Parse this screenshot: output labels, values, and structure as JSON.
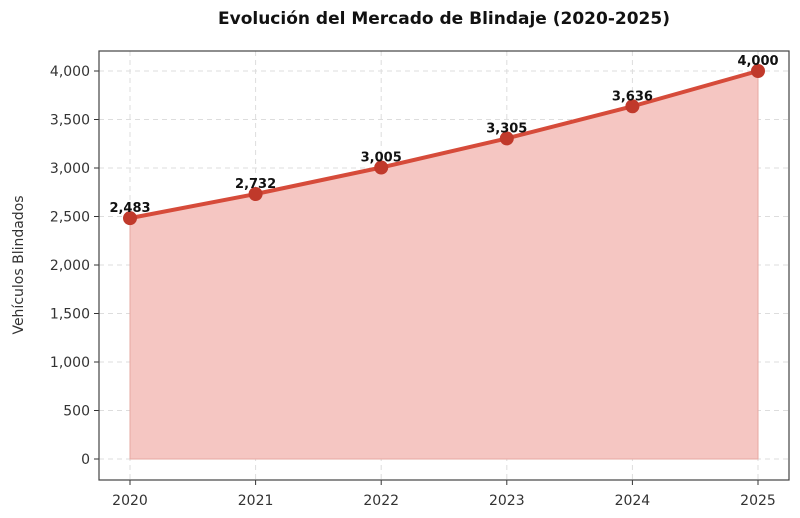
{
  "chart_data": {
    "type": "area",
    "title": "Evolución del Mercado de Blindaje (2020-2025)",
    "xlabel": "",
    "ylabel": "Vehículos Blindados",
    "x": [
      "2020",
      "2021",
      "2022",
      "2023",
      "2024",
      "2025"
    ],
    "values": [
      2483,
      2732,
      3005,
      3305,
      3636,
      4000
    ],
    "data_labels": [
      "2,483",
      "2,732",
      "3,005",
      "3,305",
      "3,636",
      "4,000"
    ],
    "yticks": [
      0,
      500,
      1000,
      1500,
      2000,
      2500,
      3000,
      3500,
      4000
    ],
    "ytick_labels": [
      "0",
      "500",
      "1,000",
      "1,500",
      "2,000",
      "2,500",
      "3,000",
      "3,500",
      "4,000"
    ],
    "ylim": [
      -220,
      4200
    ],
    "grid": true,
    "colors": {
      "line": "#d64b3a",
      "marker": "#c0392b",
      "fill": "#f5c6c2"
    }
  }
}
